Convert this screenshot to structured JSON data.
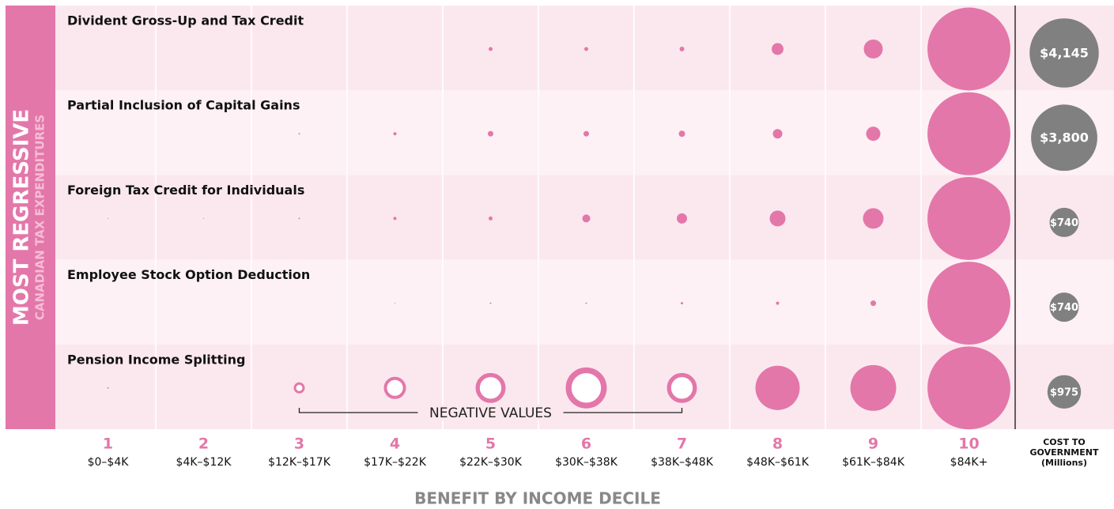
{
  "chart_data": {
    "type": "bubble-grid",
    "side_title": "MOST REGRESSIVE",
    "side_subtitle": "CANADIAN TAX EXPENDITURES",
    "x_label": "BENEFIT BY INCOME DECILE",
    "categories": [
      "1",
      "2",
      "3",
      "4",
      "5",
      "6",
      "7",
      "8",
      "9",
      "10"
    ],
    "category_ranges": [
      "$0–$4K",
      "$4K–$12K",
      "$12K–$17K",
      "$17K–$22K",
      "$22K–$30K",
      "$30K–$38K",
      "$38K–$48K",
      "$48K–$61K",
      "$61K–$84K",
      "$84K+"
    ],
    "color": "#e377a9",
    "series": [
      {
        "name": "Divident Gross-Up and Tax Credit",
        "values": [
          null,
          null,
          null,
          null,
          0.25,
          0.25,
          0.36,
          2.25,
          5.76,
          110
        ]
      },
      {
        "name": "Partial Inclusion of Capital Gains",
        "values": [
          null,
          null,
          0.04,
          0.16,
          0.49,
          0.49,
          0.64,
          1.44,
          3.24,
          110
        ]
      },
      {
        "name": "Foreign Tax Credit for Individuals",
        "values": [
          0.01,
          0.01,
          0.04,
          0.16,
          0.25,
          1,
          1.69,
          4,
          6.76,
          110
        ]
      },
      {
        "name": "Employee Stock Option Deduction",
        "values": [
          null,
          null,
          null,
          0.01,
          0.04,
          0.04,
          0.09,
          0.16,
          0.49,
          110
        ]
      },
      {
        "name": "Pension Income Splitting",
        "values": [
          0.04,
          null,
          -1.96,
          -7.84,
          -14.4,
          -27,
          -14.4,
          31.4,
          33.6,
          110
        ]
      }
    ],
    "negative_label": "NEGATIVE VALUES",
    "cost": {
      "title": [
        "COST TO",
        "GOVERNMENT",
        "(Millions)"
      ],
      "color": "#808080",
      "values": [
        4145,
        3800,
        740,
        740,
        975
      ],
      "value_labels": [
        "$4,145",
        "$3,800",
        "$740",
        "$740",
        "$975"
      ]
    }
  }
}
